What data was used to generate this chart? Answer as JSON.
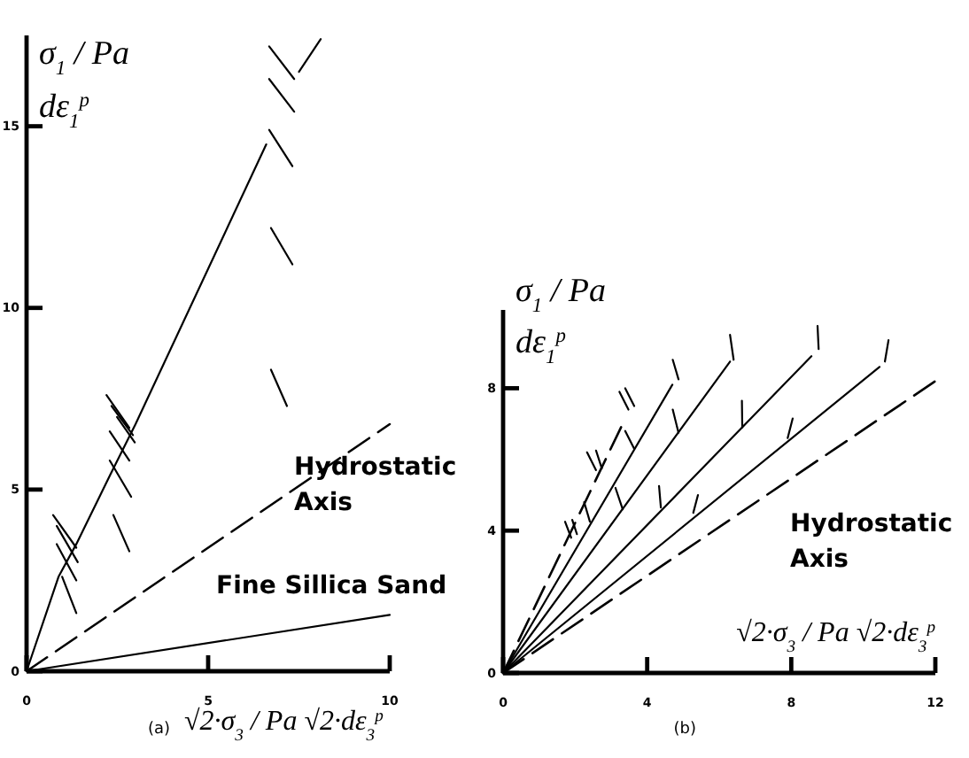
{
  "chart_data": [
    {
      "type": "line",
      "ylabel": "σ$_{1}$ / Pa\ndε$_{1}$$^{p}$",
      "xlabel": "√2·σ$_{3}$ / Pa   √2·dε$_{3}$$^{p}$",
      "xlim": [
        0,
        10
      ],
      "ylim": [
        0,
        17.5
      ],
      "xticks": [
        0,
        5,
        10
      ],
      "yticks": [
        0,
        5,
        10,
        15
      ],
      "marker": "none",
      "annotations": [
        "Hydrostatic\nAxis",
        "Fine Sillica Sand",
        "(a)"
      ],
      "series": [
        {
          "color": "#000000",
          "line_style": "solid",
          "x": [
            0,
            0.88,
            1.37,
            2.3,
            3.0,
            6.6
          ],
          "values": [
            0,
            2.6,
            3.5,
            5.4,
            6.8,
            14.5
          ]
        },
        {
          "color": "#000000",
          "line_style": "solid",
          "x": [
            7.5,
            8.1
          ],
          "values": [
            16.5,
            17.4
          ]
        },
        {
          "color": "#000000",
          "line_style": "dashed",
          "x": [
            0,
            10
          ],
          "values": [
            0,
            6.8
          ]
        },
        {
          "color": "#000000",
          "line_style": "solid",
          "x": [
            0,
            10
          ],
          "values": [
            0,
            1.55
          ]
        },
        {
          "color": "#000000",
          "line_style": "solid",
          "x": [
            6.68,
            7.37
          ],
          "values": [
            17.2,
            16.3
          ]
        },
        {
          "color": "#000000",
          "line_style": "solid",
          "x": [
            6.68,
            7.37
          ],
          "values": [
            16.3,
            15.4
          ]
        },
        {
          "color": "#000000",
          "line_style": "solid",
          "x": [
            6.68,
            7.32
          ],
          "values": [
            14.9,
            13.9
          ]
        },
        {
          "color": "#000000",
          "line_style": "solid",
          "x": [
            6.73,
            7.32
          ],
          "values": [
            12.2,
            11.2
          ]
        },
        {
          "color": "#000000",
          "line_style": "solid",
          "x": [
            6.73,
            7.17
          ],
          "values": [
            8.3,
            7.3
          ]
        },
        {
          "color": "#000000",
          "line_style": "solid",
          "x": [
            2.2,
            2.83
          ],
          "values": [
            7.6,
            6.7
          ]
        },
        {
          "color": "#000000",
          "line_style": "solid",
          "x": [
            2.34,
            2.93
          ],
          "values": [
            7.3,
            6.5
          ]
        },
        {
          "color": "#000000",
          "line_style": "solid",
          "x": [
            2.49,
            2.98
          ],
          "values": [
            7.0,
            6.3
          ]
        },
        {
          "color": "#000000",
          "line_style": "solid",
          "x": [
            2.29,
            2.83
          ],
          "values": [
            6.6,
            5.8
          ]
        },
        {
          "color": "#000000",
          "line_style": "solid",
          "x": [
            2.29,
            2.88
          ],
          "values": [
            5.8,
            4.8
          ]
        },
        {
          "color": "#000000",
          "line_style": "solid",
          "x": [
            2.39,
            2.83
          ],
          "values": [
            4.3,
            3.3
          ]
        },
        {
          "color": "#000000",
          "line_style": "solid",
          "x": [
            0.73,
            1.37
          ],
          "values": [
            4.3,
            3.4
          ]
        },
        {
          "color": "#000000",
          "line_style": "solid",
          "x": [
            0.83,
            1.41
          ],
          "values": [
            4.0,
            3.0
          ]
        },
        {
          "color": "#000000",
          "line_style": "solid",
          "x": [
            0.83,
            1.37
          ],
          "values": [
            3.5,
            2.5
          ]
        },
        {
          "color": "#000000",
          "line_style": "solid",
          "x": [
            0.98,
            1.37
          ],
          "values": [
            2.6,
            1.6
          ]
        }
      ]
    },
    {
      "type": "line",
      "ylabel": "σ$_{1}$ / Pa\ndε$_{1}$$^{p}$",
      "xlabel": "√2·σ$_{3}$ / Pa   √2·dε$_{3}$$^{p}$",
      "xlim": [
        0,
        12
      ],
      "ylim": [
        0,
        10.2
      ],
      "xticks": [
        0,
        4,
        8,
        12
      ],
      "yticks": [
        0,
        4,
        8
      ],
      "marker": "none",
      "annotations": [
        "Hydrostatic\nAxis",
        "(b)"
      ],
      "series": [
        {
          "color": "#000000",
          "line_style": "dashed",
          "x": [
            0,
            3.32
          ],
          "values": [
            0,
            7.0
          ]
        },
        {
          "color": "#000000",
          "line_style": "solid",
          "x": [
            0,
            4.7
          ],
          "values": [
            0,
            8.1
          ]
        },
        {
          "color": "#000000",
          "line_style": "solid",
          "x": [
            0,
            6.3
          ],
          "values": [
            0,
            8.75
          ]
        },
        {
          "color": "#000000",
          "line_style": "solid",
          "x": [
            0,
            8.56
          ],
          "values": [
            0,
            8.9
          ]
        },
        {
          "color": "#000000",
          "line_style": "solid",
          "x": [
            0,
            10.45
          ],
          "values": [
            0,
            8.6
          ]
        },
        {
          "color": "#000000",
          "line_style": "dashed",
          "x": [
            0,
            12
          ],
          "values": [
            0,
            8.2
          ]
        },
        {
          "color": "#000000",
          "line_style": "solid",
          "x": [
            3.23,
            3.48
          ],
          "values": [
            7.9,
            7.4
          ]
        },
        {
          "color": "#000000",
          "line_style": "solid",
          "x": [
            3.39,
            3.64
          ],
          "values": [
            8.0,
            7.5
          ]
        },
        {
          "color": "#000000",
          "line_style": "solid",
          "x": [
            2.33,
            2.58
          ],
          "values": [
            6.2,
            5.7
          ]
        },
        {
          "color": "#000000",
          "line_style": "solid",
          "x": [
            2.58,
            2.74
          ],
          "values": [
            6.25,
            5.75
          ]
        },
        {
          "color": "#000000",
          "line_style": "solid",
          "x": [
            1.72,
            1.89
          ],
          "values": [
            4.25,
            3.8
          ]
        },
        {
          "color": "#000000",
          "line_style": "solid",
          "x": [
            1.92,
            2.05
          ],
          "values": [
            4.3,
            3.9
          ]
        },
        {
          "color": "#000000",
          "line_style": "solid",
          "x": [
            2.25,
            2.41
          ],
          "values": [
            4.8,
            4.25
          ]
        },
        {
          "color": "#000000",
          "line_style": "solid",
          "x": [
            3.39,
            3.64
          ],
          "values": [
            6.8,
            6.3
          ]
        },
        {
          "color": "#000000",
          "line_style": "solid",
          "x": [
            4.71,
            4.87
          ],
          "values": [
            8.8,
            8.25
          ]
        },
        {
          "color": "#000000",
          "line_style": "solid",
          "x": [
            3.12,
            3.32
          ],
          "values": [
            5.2,
            4.6
          ]
        },
        {
          "color": "#000000",
          "line_style": "solid",
          "x": [
            4.71,
            4.87
          ],
          "values": [
            7.4,
            6.75
          ]
        },
        {
          "color": "#000000",
          "line_style": "solid",
          "x": [
            6.3,
            6.4
          ],
          "values": [
            9.5,
            8.8
          ]
        },
        {
          "color": "#000000",
          "line_style": "solid",
          "x": [
            4.33,
            4.38
          ],
          "values": [
            5.25,
            4.65
          ]
        },
        {
          "color": "#000000",
          "line_style": "solid",
          "x": [
            6.63,
            6.64
          ],
          "values": [
            7.65,
            6.9
          ]
        },
        {
          "color": "#000000",
          "line_style": "solid",
          "x": [
            8.73,
            8.76
          ],
          "values": [
            9.75,
            9.1
          ]
        },
        {
          "color": "#000000",
          "line_style": "solid",
          "x": [
            5.41,
            5.28
          ],
          "values": [
            5.0,
            4.5
          ]
        },
        {
          "color": "#000000",
          "line_style": "solid",
          "x": [
            8.04,
            7.9
          ],
          "values": [
            7.15,
            6.6
          ]
        },
        {
          "color": "#000000",
          "line_style": "solid",
          "x": [
            10.7,
            10.6
          ],
          "values": [
            9.35,
            8.75
          ]
        }
      ]
    }
  ]
}
